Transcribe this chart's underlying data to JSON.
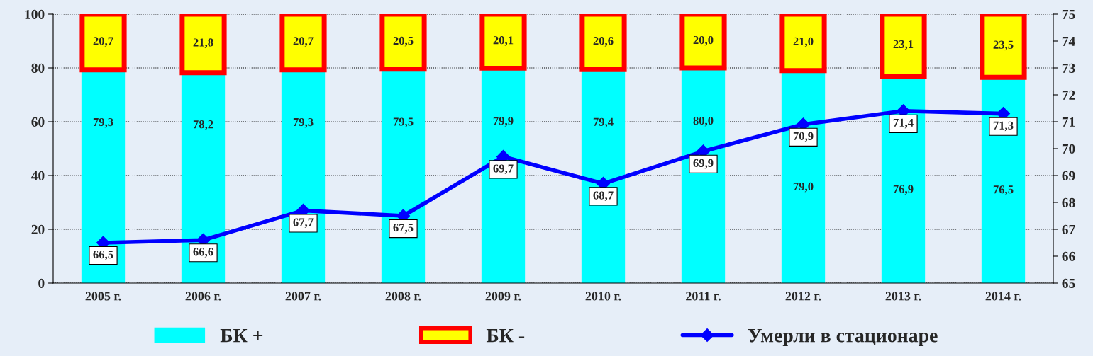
{
  "chart_data": {
    "type": "bar",
    "stacked": true,
    "categories": [
      "2005 г.",
      "2006 г.",
      "2007 г.",
      "2008 г.",
      "2009 г.",
      "2010 г.",
      "2011 г.",
      "2012 г.",
      "2013 г.",
      "2014 г."
    ],
    "series": [
      {
        "name": "БК +",
        "color": "#00ffff",
        "values": [
          79.3,
          78.2,
          79.3,
          79.5,
          79.9,
          79.4,
          80.0,
          79.0,
          76.9,
          76.5
        ],
        "value_labels": [
          "79,3",
          "78,2",
          "79,3",
          "79,5",
          "79,9",
          "79,4",
          "80,0",
          "79,0",
          "76,9",
          "76,5"
        ]
      },
      {
        "name": "БК -",
        "color": "#ffff00",
        "values": [
          20.7,
          21.8,
          20.7,
          20.5,
          20.1,
          20.6,
          20.0,
          21.0,
          23.1,
          23.5
        ],
        "value_labels": [
          "20,7",
          "21,8",
          "20,7",
          "20,5",
          "20,1",
          "20,6",
          "20,0",
          "21,0",
          "23,1",
          "23,5"
        ]
      },
      {
        "name": "Умерли в стационаре",
        "type": "line",
        "axis": "y2",
        "color": "#0000ff",
        "marker": "diamond",
        "values": [
          66.5,
          66.6,
          67.7,
          67.5,
          69.7,
          68.7,
          69.9,
          70.9,
          71.4,
          71.3
        ],
        "value_labels": [
          "66,5",
          "66,6",
          "67,7",
          "67,5",
          "69,7",
          "68,7",
          "69,9",
          "70,9",
          "71,4",
          "71,3"
        ]
      }
    ],
    "ylim": [
      0,
      100
    ],
    "yticks": [
      0,
      20,
      40,
      60,
      80,
      100
    ],
    "y2lim": [
      65,
      75
    ],
    "y2ticks": [
      65,
      66,
      67,
      68,
      69,
      70,
      71,
      72,
      73,
      74,
      75
    ],
    "grid": "y",
    "legend": "bottom"
  }
}
